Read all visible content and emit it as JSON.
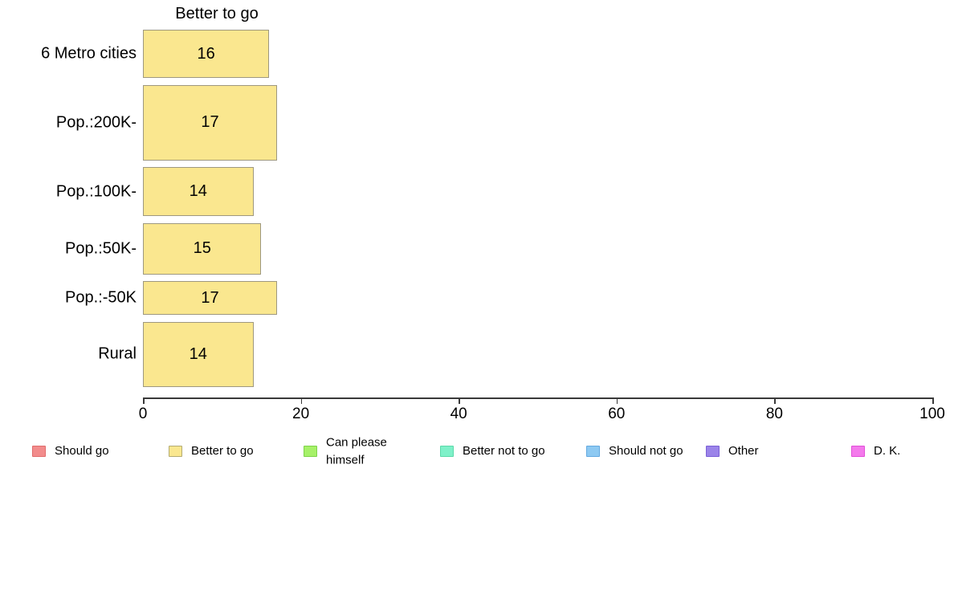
{
  "chart_data": {
    "type": "bar",
    "orientation": "horizontal",
    "title": "Better to go",
    "categories": [
      "6 Metro cities",
      "Pop.:200K-",
      "Pop.:100K-",
      "Pop.:50K-",
      "Pop.:-50K",
      "Rural"
    ],
    "values": [
      16,
      17,
      14,
      15,
      17,
      14
    ],
    "bar_thickness_px": [
      60,
      94,
      61,
      64,
      42,
      81
    ],
    "xlim": [
      0,
      100
    ],
    "x_ticks": [
      0,
      20,
      40,
      60,
      80,
      100
    ],
    "grid": false,
    "value_labels_inside": true,
    "bar_color": "#FAE78F",
    "bar_border_color": "#9e987f",
    "axis_color": "#3a3a3a",
    "legend_position": "bottom",
    "legend": [
      {
        "label": "Should go",
        "color": "#F28C8C",
        "border": "#e06c6c"
      },
      {
        "label": "Better to go",
        "color": "#FAE78F",
        "border": "#b3ab73"
      },
      {
        "label": "Can please\nhimself",
        "color": "#A6F168",
        "border": "#7ed24b"
      },
      {
        "label": "Better not to go",
        "color": "#7FF1C9",
        "border": "#5cd9a9"
      },
      {
        "label": "Should not go",
        "color": "#8DC9F2",
        "border": "#64a9e0"
      },
      {
        "label": "Other",
        "color": "#9B84E9",
        "border": "#7a5fd6"
      },
      {
        "label": "D. K.",
        "color": "#F47AEC",
        "border": "#e14fd8"
      }
    ]
  }
}
